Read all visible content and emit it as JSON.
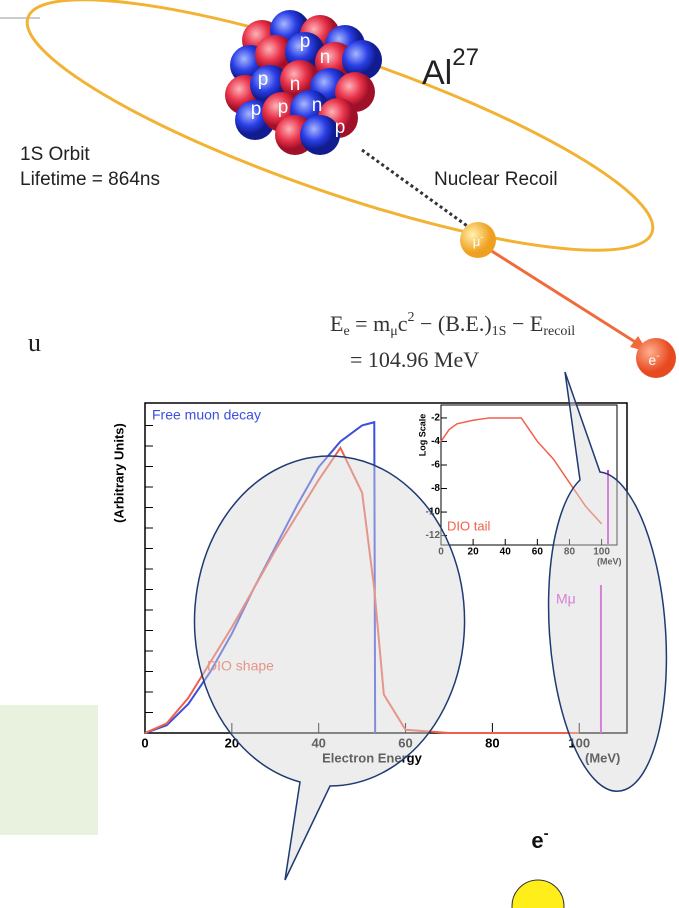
{
  "diagram": {
    "nucleus_letters": [
      "p",
      "n",
      "p",
      "n",
      "p",
      "p",
      "n",
      "p"
    ],
    "element": "Al",
    "mass_number": "27",
    "orbit": "1S Orbit",
    "lifetime": "Lifetime = 864ns",
    "recoil": "Nuclear Recoil",
    "muon": "μ",
    "muon_charge": "-",
    "electron": "e",
    "electron_charge": "-",
    "equation_line1": [
      "E",
      "e",
      " = m",
      "μ",
      "c",
      "2",
      " − (B.E.)",
      "1S",
      " − E",
      "recoil"
    ],
    "equation_line2": "= 104.96 MeV",
    "cut_text": "u",
    "bottom_electron": "e",
    "bottom_electron_charge": "-"
  },
  "chart_data": [
    {
      "type": "line",
      "y_label": "(Arbitrary Units)",
      "x_label": "Electron Energy",
      "x_unit": "(MeV)",
      "x": [
        0,
        5,
        10,
        15,
        20,
        25,
        30,
        35,
        40,
        45,
        50,
        52.8,
        53,
        55,
        60,
        70,
        80,
        90,
        100
      ],
      "series": [
        {
          "name": "Free muon decay",
          "color": "#3b4fe0",
          "values": [
            0,
            0.024,
            0.091,
            0.19,
            0.31,
            0.45,
            0.58,
            0.71,
            0.83,
            0.91,
            0.96,
            0.97,
            0,
            null,
            null,
            null,
            null,
            null,
            null
          ]
        },
        {
          "name": "DIO shape",
          "color": "#f0604a",
          "values": [
            0,
            0.03,
            0.11,
            0.22,
            0.33,
            0.45,
            0.57,
            0.68,
            0.79,
            0.89,
            0.75,
            0.45,
            0.42,
            0.12,
            0.01,
            0,
            0,
            0,
            0
          ]
        }
      ],
      "marker": {
        "x": 105,
        "label": "Mμ",
        "color": "#d43ad4"
      },
      "xlim": [
        0,
        111
      ],
      "ylim": [
        0,
        1.03
      ],
      "xticks": [
        0,
        20,
        40,
        60,
        80,
        100
      ]
    },
    {
      "type": "line",
      "y_label": "Log Scale",
      "x_unit": "(MeV)",
      "x": [
        0,
        5,
        10,
        20,
        30,
        40,
        50,
        55,
        60,
        70,
        80,
        90,
        100
      ],
      "series": [
        {
          "name": "DIO tail",
          "color": "#f0604a",
          "values": [
            -4,
            -3,
            -2.5,
            -2.2,
            -2,
            -2,
            -2,
            -3,
            -4,
            -5.5,
            -7.5,
            -9.5,
            -11
          ]
        }
      ],
      "marker": {
        "x": 104,
        "color": "#d43ad4"
      },
      "xlim": [
        0,
        109.6
      ],
      "ylim": [
        -12.8,
        -0.9
      ],
      "xticks": [
        0,
        20,
        40,
        60,
        80,
        100
      ],
      "yticks": [
        -2,
        -4,
        -6,
        -8,
        -10,
        -12
      ]
    }
  ]
}
